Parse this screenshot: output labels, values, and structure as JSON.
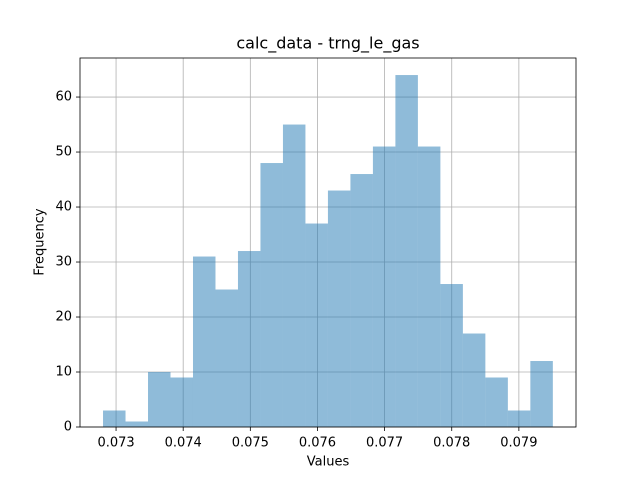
{
  "chart_data": {
    "type": "histogram",
    "title": "calc_data - trng_le_gas",
    "xlabel": "Values",
    "ylabel": "Frequency",
    "bins": [
      0.072806,
      0.073141,
      0.073476,
      0.073811,
      0.074146,
      0.074481,
      0.074816,
      0.075151,
      0.075486,
      0.075821,
      0.076156,
      0.076491,
      0.076826,
      0.077161,
      0.077496,
      0.077831,
      0.078166,
      0.078501,
      0.078836,
      0.079171,
      0.079506
    ],
    "values": [
      3,
      1,
      10,
      9,
      31,
      25,
      32,
      48,
      55,
      37,
      43,
      46,
      51,
      64,
      51,
      26,
      17,
      9,
      3,
      12
    ],
    "color": "#1f77b4",
    "xlim": [
      0.072463,
      0.079851
    ],
    "xticks": [
      0.073,
      0.074,
      0.075,
      0.076,
      0.077,
      0.078,
      0.079
    ],
    "ylim": [
      0,
      67.1
    ],
    "yticks": [
      0,
      10,
      20,
      30,
      40,
      50,
      60
    ],
    "grid": true
  }
}
